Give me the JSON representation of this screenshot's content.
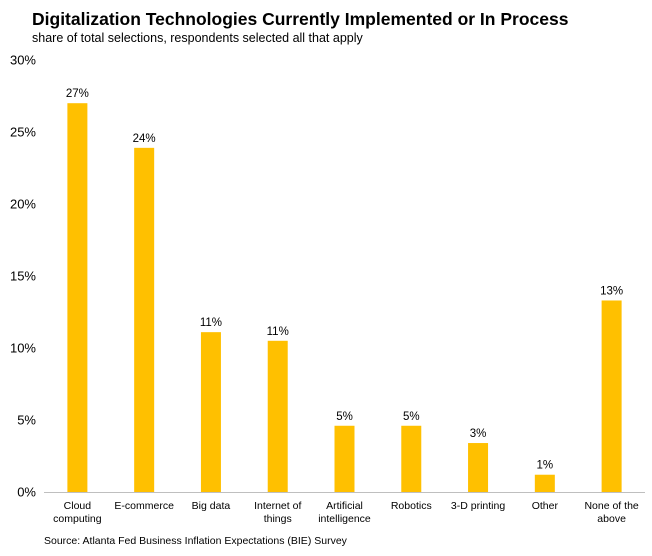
{
  "title": "Digitalization Technologies Currently Implemented or In Process",
  "subtitle": "share of total selections, respondents selected all that apply",
  "source": "Source: Atlanta Fed Business Inflation Expectations (BIE) Survey",
  "colors": {
    "bar": "#FFC000",
    "axis": "#BFBFBF"
  },
  "chart_data": {
    "type": "bar",
    "title": "Digitalization Technologies Currently Implemented or In Process",
    "subtitle": "share of total selections, respondents selected all that apply",
    "xlabel": "",
    "ylabel": "",
    "ylim": [
      0,
      30
    ],
    "yticks": [
      0,
      5,
      10,
      15,
      20,
      25,
      30
    ],
    "ytick_labels": [
      "0%",
      "5%",
      "10%",
      "15%",
      "20%",
      "25%",
      "30%"
    ],
    "grid": false,
    "categories": [
      [
        "Cloud",
        "computing"
      ],
      [
        "E-commerce"
      ],
      [
        "Big data"
      ],
      [
        "Internet of",
        "things"
      ],
      [
        "Artificial",
        "intelligence"
      ],
      [
        "Robotics"
      ],
      [
        "3-D printing"
      ],
      [
        "Other"
      ],
      [
        "None of the",
        "above"
      ]
    ],
    "values": [
      27.0,
      23.9,
      11.1,
      10.5,
      4.6,
      4.6,
      3.4,
      1.2,
      13.3
    ],
    "data_labels": [
      "27%",
      "24%",
      "11%",
      "11%",
      "5%",
      "5%",
      "3%",
      "1%",
      "13%"
    ]
  }
}
